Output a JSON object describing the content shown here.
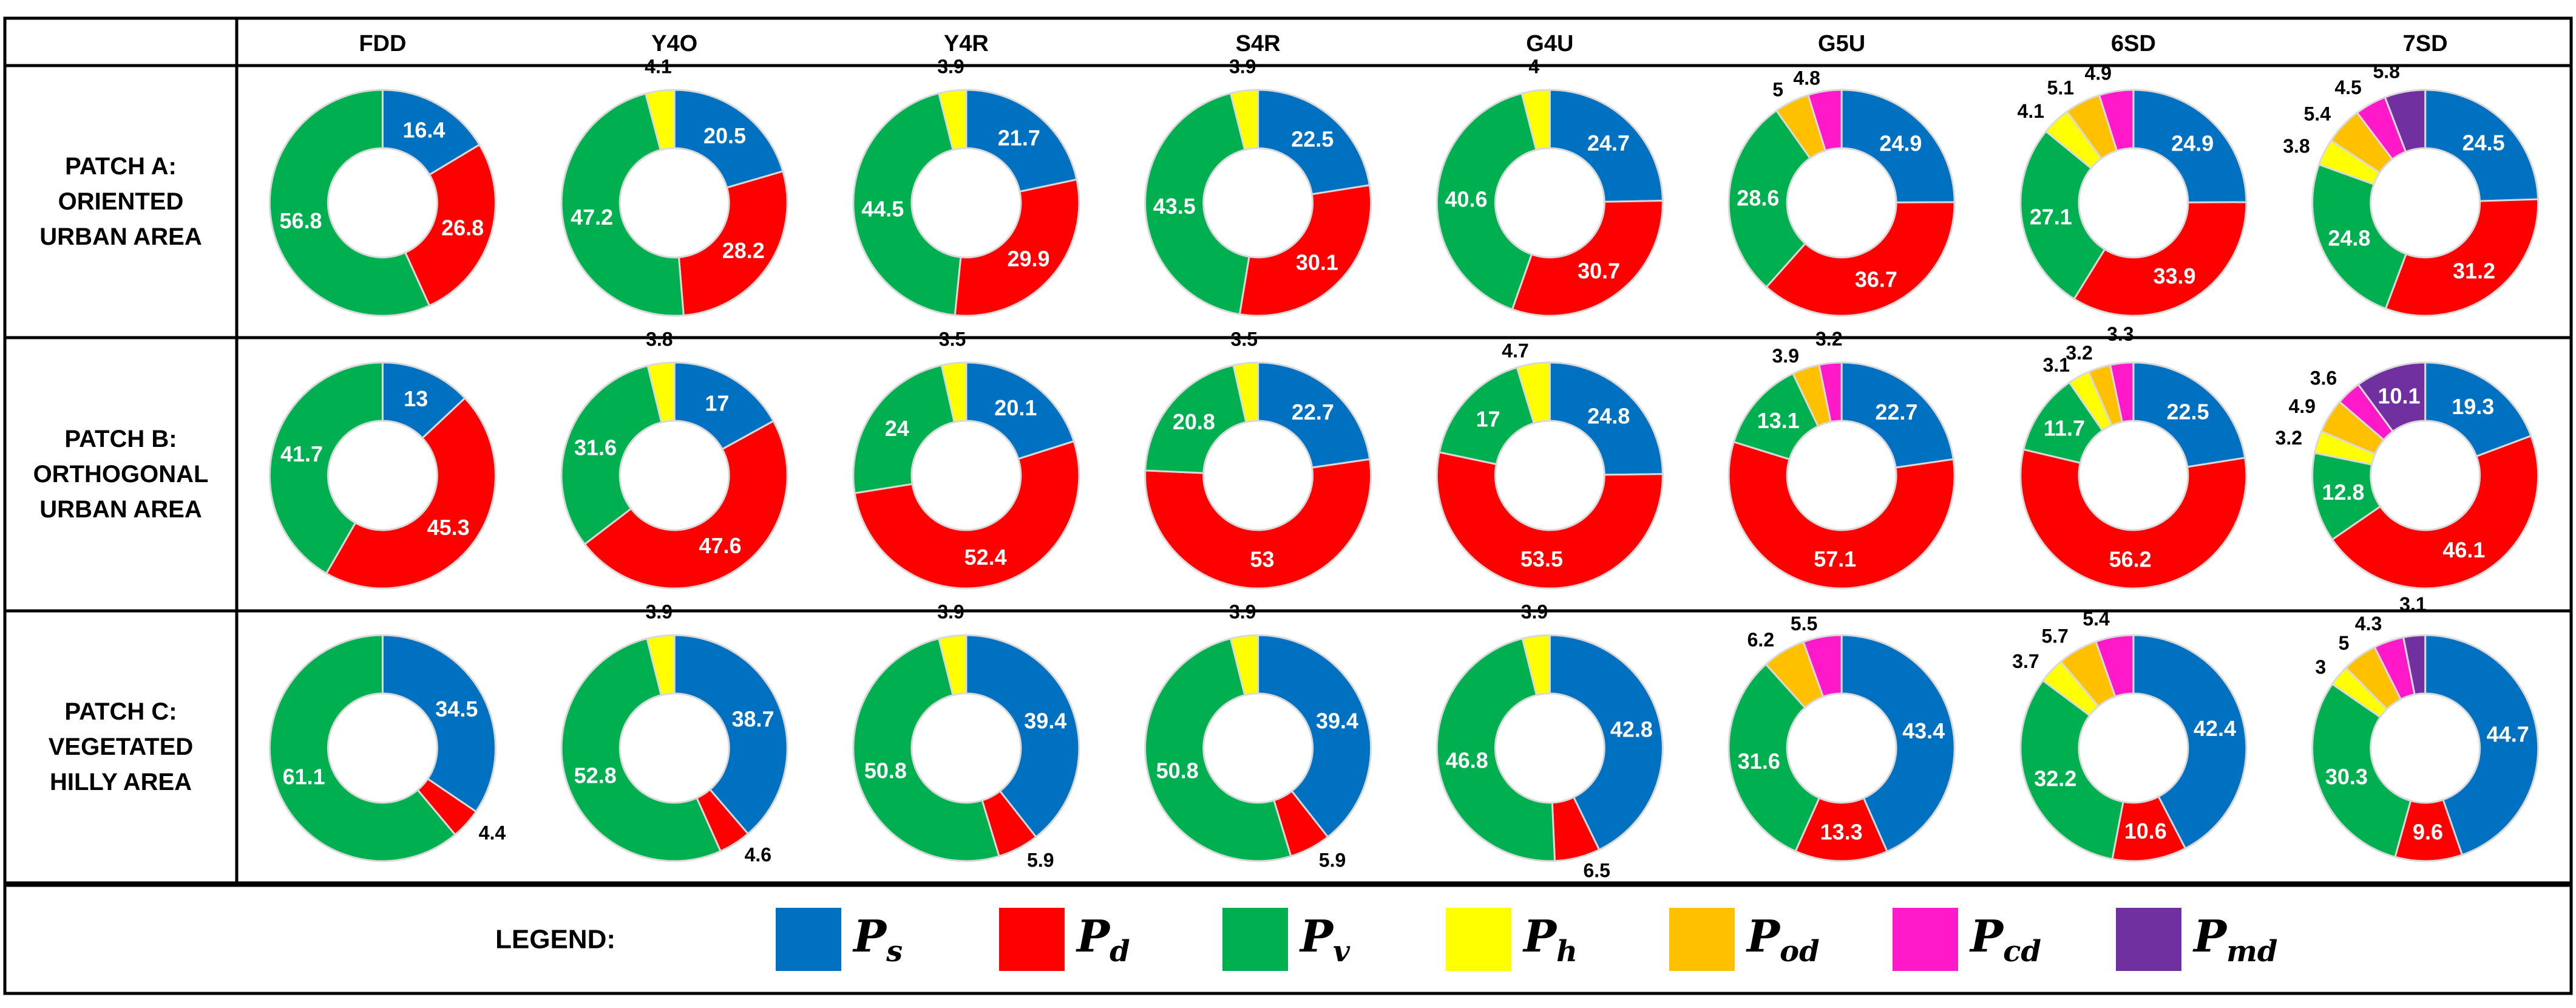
{
  "chart_data": {
    "type": "donut-grid",
    "columns": [
      "FDD",
      "Y4O",
      "Y4R",
      "S4R",
      "G4U",
      "G5U",
      "6SD",
      "7SD"
    ],
    "rows": [
      {
        "label_lines": [
          "PATCH A:",
          "ORIENTED",
          "URBAN AREA"
        ]
      },
      {
        "label_lines": [
          "PATCH B:",
          "ORTHOGONAL",
          "URBAN AREA"
        ]
      },
      {
        "label_lines": [
          "PATCH C:",
          "VEGETATED",
          "HILLY AREA"
        ]
      }
    ],
    "legend_title": "LEGEND:",
    "series": [
      {
        "key": "Ps",
        "base": "P",
        "sub": "s",
        "color": "#0070c0"
      },
      {
        "key": "Pd",
        "base": "P",
        "sub": "d",
        "color": "#ff0000"
      },
      {
        "key": "Pv",
        "base": "P",
        "sub": "v",
        "color": "#00b050"
      },
      {
        "key": "Ph",
        "base": "P",
        "sub": "h",
        "color": "#ffff00"
      },
      {
        "key": "Pod",
        "base": "P",
        "sub": "od",
        "color": "#ffc000"
      },
      {
        "key": "Pcd",
        "base": "P",
        "sub": "cd",
        "color": "#ff19c8"
      },
      {
        "key": "Pmd",
        "base": "P",
        "sub": "md",
        "color": "#7030a0"
      }
    ],
    "data": [
      [
        {
          "Ps": 16.4,
          "Pd": 26.8,
          "Pv": 56.8
        },
        {
          "Ps": 20.5,
          "Pd": 28.2,
          "Pv": 47.2,
          "Ph": 4.1
        },
        {
          "Ps": 21.7,
          "Pd": 29.9,
          "Pv": 44.5,
          "Ph": 3.9
        },
        {
          "Ps": 22.5,
          "Pd": 30.1,
          "Pv": 43.5,
          "Ph": 3.9
        },
        {
          "Ps": 24.7,
          "Pd": 30.7,
          "Pv": 40.6,
          "Ph": 4
        },
        {
          "Ps": 24.9,
          "Pd": 36.7,
          "Pv": 28.6,
          "Pod": 5,
          "Pcd": 4.8
        },
        {
          "Ps": 24.9,
          "Pd": 33.9,
          "Pv": 27.1,
          "Ph": 4.1,
          "Pod": 5.1,
          "Pcd": 4.9
        },
        {
          "Ps": 24.5,
          "Pd": 31.2,
          "Pv": 24.8,
          "Ph": 3.8,
          "Pod": 5.4,
          "Pcd": 4.5,
          "Pmd": 5.8
        }
      ],
      [
        {
          "Ps": 13,
          "Pd": 45.3,
          "Pv": 41.7
        },
        {
          "Ps": 17,
          "Pd": 47.6,
          "Pv": 31.6,
          "Ph": 3.8
        },
        {
          "Ps": 20.1,
          "Pd": 52.4,
          "Pv": 24,
          "Ph": 3.5
        },
        {
          "Ps": 22.7,
          "Pd": 53,
          "Pv": 20.8,
          "Ph": 3.5
        },
        {
          "Ps": 24.8,
          "Pd": 53.5,
          "Pv": 17,
          "Ph": 4.7
        },
        {
          "Ps": 22.7,
          "Pd": 57.1,
          "Pv": 13.1,
          "Pod": 3.9,
          "Pcd": 3.2
        },
        {
          "Ps": 22.5,
          "Pd": 56.2,
          "Pv": 11.7,
          "Ph": 3.1,
          "Pod": 3.2,
          "Pcd": 3.3
        },
        {
          "Ps": 19.3,
          "Pd": 46.1,
          "Pv": 12.8,
          "Ph": 3.2,
          "Pod": 4.9,
          "Pcd": 3.6,
          "Pmd": 10.1
        }
      ],
      [
        {
          "Ps": 34.5,
          "Pd": 4.4,
          "Pv": 61.1
        },
        {
          "Ps": 38.7,
          "Pd": 4.6,
          "Pv": 52.8,
          "Ph": 3.9
        },
        {
          "Ps": 39.4,
          "Pd": 5.9,
          "Pv": 50.8,
          "Ph": 3.9
        },
        {
          "Ps": 39.4,
          "Pd": 5.9,
          "Pv": 50.8,
          "Ph": 3.9
        },
        {
          "Ps": 42.8,
          "Pd": 6.5,
          "Pv": 46.8,
          "Ph": 3.9
        },
        {
          "Ps": 43.4,
          "Pd": 13.3,
          "Pv": 31.6,
          "Pod": 6.2,
          "Pcd": 5.5
        },
        {
          "Ps": 42.4,
          "Pd": 10.6,
          "Pv": 32.2,
          "Ph": 3.7,
          "Pod": 5.7,
          "Pcd": 5.4
        },
        {
          "Ps": 44.7,
          "Pd": 9.6,
          "Pv": 30.3,
          "Ph": 3,
          "Pod": 5,
          "Pcd": 4.3,
          "Pmd": 3.1
        }
      ]
    ],
    "order": [
      "Ps",
      "Pd",
      "Pv",
      "Ph",
      "Pod",
      "Pcd",
      "Pmd"
    ]
  }
}
